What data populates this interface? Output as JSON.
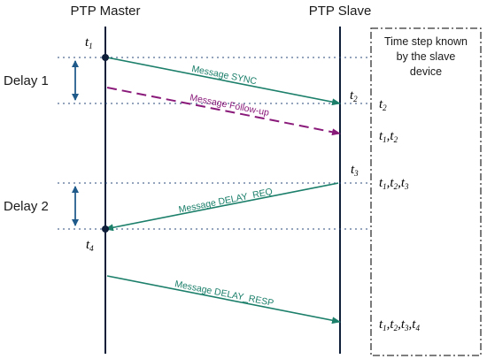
{
  "actors": {
    "master_label": "PTP Master",
    "slave_label": "PTP Slave"
  },
  "info_box": {
    "line1": "Time step known",
    "line2": "by the slave",
    "line3": "device"
  },
  "delays": {
    "delay1": "Delay 1",
    "delay2": "Delay 2"
  },
  "messages": {
    "sync": "Message SYNC",
    "follow_up": "Message Follow-up",
    "delay_req": "Message DELAY_REQ",
    "delay_resp": "Message DELAY_RESP"
  },
  "timestamps": {
    "t": "t",
    "t1_sub": "1",
    "t2_sub": "2",
    "t3_sub": "3",
    "t4_sub": "4",
    "sep": ","
  },
  "colors": {
    "message_arrow": "#1b7f6a",
    "follow_up_arrow": "#8a1a7a",
    "delay_arrow": "#1f5a8a",
    "timeline": "#0f1f3a"
  }
}
